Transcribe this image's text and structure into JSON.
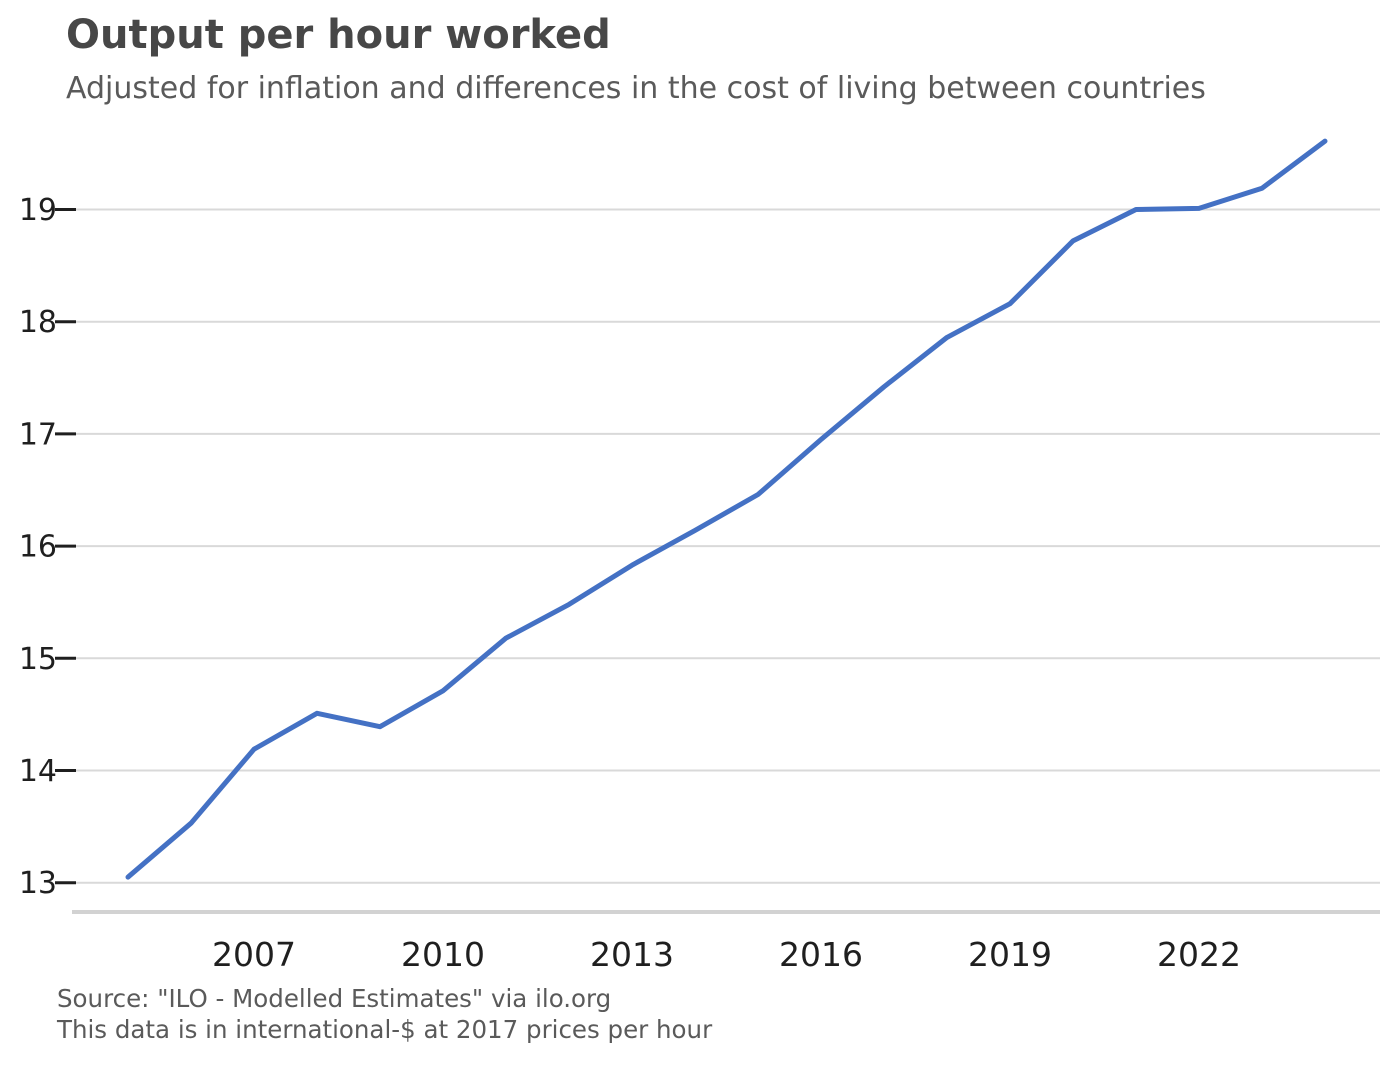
{
  "header": {
    "title": "Output per hour worked",
    "subtitle": "Adjusted for inflation and differences in the cost of living between countries"
  },
  "footer": {
    "source_line": "Source: \"ILO - Modelled Estimates\" via ilo.org",
    "note_line": "This data is in international-$ at 2017 prices per hour"
  },
  "colors": {
    "line": "#4471C4",
    "gridline": "#D9D9D9",
    "axis_line": "#D2D2D2",
    "tick_mark": "#1F1F1F",
    "axis_label": "#1F1F1F",
    "title": "#474747",
    "subtitle": "#5A5A5A",
    "footer_text": "#5A5A5A"
  },
  "chart_data": {
    "type": "line",
    "title": "Output per hour worked",
    "subtitle": "Adjusted for inflation and differences in the cost of living between countries",
    "x": [
      2005,
      2006,
      2007,
      2008,
      2009,
      2010,
      2011,
      2012,
      2013,
      2014,
      2015,
      2016,
      2017,
      2018,
      2019,
      2020,
      2021,
      2022,
      2023,
      2024
    ],
    "series": [
      {
        "name": "Output per hour worked",
        "color": "#4471C4",
        "values": [
          13.05,
          13.53,
          14.19,
          14.51,
          14.39,
          14.71,
          15.18,
          15.48,
          15.83,
          16.14,
          16.46,
          16.95,
          17.42,
          17.86,
          18.16,
          18.72,
          19.0,
          19.01,
          19.19,
          19.61
        ]
      }
    ],
    "xlabel": "",
    "ylabel": "",
    "x_tick_labels": [
      "2007",
      "2010",
      "2013",
      "2016",
      "2019",
      "2022"
    ],
    "x_tick_years": [
      2007,
      2010,
      2013,
      2016,
      2019,
      2022
    ],
    "y_ticks": [
      13,
      14,
      15,
      16,
      17,
      18,
      19
    ],
    "ylim": [
      12.73,
      19.9
    ],
    "xlim": [
      2005,
      2024
    ],
    "grid": "horizontal-only",
    "legend": "none",
    "units": "international-$ at 2017 prices per hour",
    "source": "Source: \"ILO - Modelled Estimates\" via ilo.org"
  }
}
